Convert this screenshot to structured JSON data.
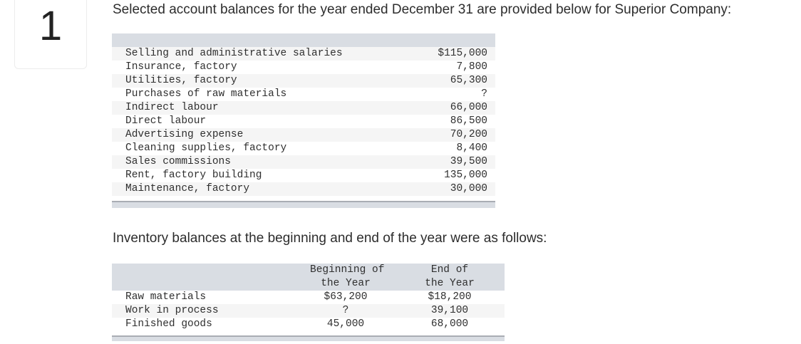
{
  "question": {
    "number": "1",
    "intro": "Selected account balances for the year ended December 31 are provided below for Superior Company:",
    "inventory_intro": "Inventory balances at the beginning and end of the year were as follows:"
  },
  "accounts": [
    {
      "label": "Selling and administrative salaries",
      "value": "$115,000"
    },
    {
      "label": "Insurance, factory",
      "value": "7,800"
    },
    {
      "label": "Utilities, factory",
      "value": "65,300"
    },
    {
      "label": "Purchases of raw materials",
      "value": "?"
    },
    {
      "label": "Indirect labour",
      "value": "66,000"
    },
    {
      "label": "Direct labour",
      "value": "86,500"
    },
    {
      "label": "Advertising expense",
      "value": "70,200"
    },
    {
      "label": "Cleaning supplies, factory",
      "value": "8,400"
    },
    {
      "label": "Sales commissions",
      "value": "39,500"
    },
    {
      "label": "Rent, factory building",
      "value": "135,000"
    },
    {
      "label": "Maintenance, factory",
      "value": "30,000"
    }
  ],
  "inventory": {
    "headers": {
      "beginning": [
        "Beginning of",
        "the Year"
      ],
      "end": [
        "End of",
        "the Year"
      ]
    },
    "rows": [
      {
        "label": "Raw materials",
        "beginning": "$63,200",
        "end": "$18,200"
      },
      {
        "label": "Work in process",
        "beginning": "?",
        "end": "39,100"
      },
      {
        "label": "Finished goods",
        "beginning": "45,000",
        "end": "68,000"
      }
    ]
  }
}
